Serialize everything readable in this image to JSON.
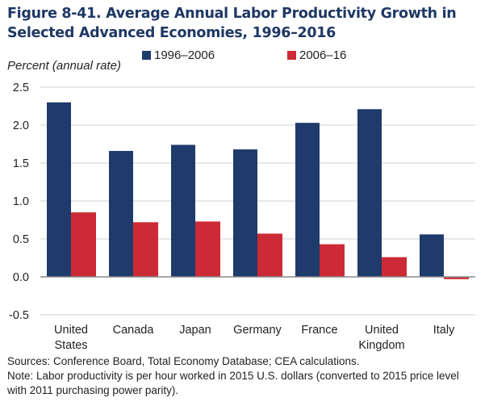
{
  "chart_data": {
    "type": "bar",
    "title": "Figure 8-41. Average Annual Labor Productivity Growth in Selected Advanced Economies, 1996–2016",
    "ylabel": "Percent (annual rate)",
    "xlabel": "",
    "ylim": [
      -0.5,
      2.5
    ],
    "yticks": [
      "2.5",
      "2.0",
      "1.5",
      "1.0",
      "0.5",
      "0.0",
      "-0.5"
    ],
    "ytick_values": [
      2.5,
      2.0,
      1.5,
      1.0,
      0.5,
      0.0,
      -0.5
    ],
    "grid": true,
    "legend_position": "top",
    "categories": [
      [
        "United",
        "States"
      ],
      [
        "Canada"
      ],
      [
        "Japan"
      ],
      [
        "Germany"
      ],
      [
        "France"
      ],
      [
        "United",
        "Kingdom"
      ],
      [
        "Italy"
      ]
    ],
    "series": [
      {
        "name": "1996–2006",
        "color": "#1f3b6b",
        "values": [
          2.3,
          1.66,
          1.74,
          1.68,
          2.03,
          2.21,
          0.56
        ]
      },
      {
        "name": "2006–16",
        "color": "#cc2a36",
        "values": [
          0.85,
          0.72,
          0.73,
          0.57,
          0.43,
          0.26,
          -0.03
        ]
      }
    ]
  },
  "footer": {
    "sources": "Sources: Conference Board, Total Economy Database; CEA calculations.",
    "note_line1": "Note: Labor productivity is per hour worked in 2015 U.S. dollars (converted to 2015 price level",
    "note_line2": "with 2011 purchasing power parity)."
  },
  "colors": {
    "title": "#1f3864",
    "gridline": "#d9d9d9",
    "axis": "#8c8c8c"
  }
}
